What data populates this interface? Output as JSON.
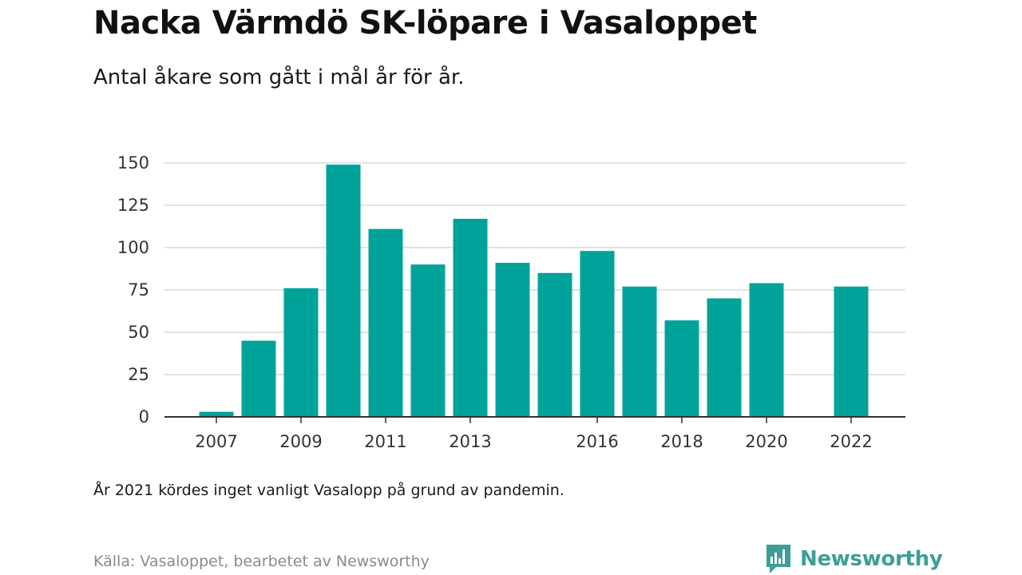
{
  "header": {
    "title": "Nacka Värmdö SK-löpare i Vasaloppet",
    "subtitle": "Antal åkare som gått i mål år för år."
  },
  "chart_data": {
    "type": "bar",
    "x": [
      2007,
      2008,
      2009,
      2010,
      2011,
      2012,
      2013,
      2014,
      2015,
      2016,
      2017,
      2018,
      2019,
      2020,
      2021,
      2022
    ],
    "values": [
      3,
      45,
      76,
      149,
      111,
      90,
      117,
      91,
      85,
      98,
      77,
      57,
      70,
      79,
      null,
      77
    ],
    "x_tick_labels": [
      "2007",
      "2009",
      "2011",
      "2013",
      "2016",
      "2018",
      "2020",
      "2022"
    ],
    "y_ticks": [
      0,
      25,
      50,
      75,
      100,
      125,
      150
    ],
    "ylim": [
      0,
      150
    ],
    "grid": true,
    "bar_color": "#00a39a"
  },
  "footer": {
    "note": "År 2021 kördes inget vanligt Vasalopp på grund av pandemin.",
    "source": "Källa: Vasaloppet, bearbetet av Newsworthy",
    "brand": "Newsworthy",
    "brand_color": "#3d9e97"
  }
}
